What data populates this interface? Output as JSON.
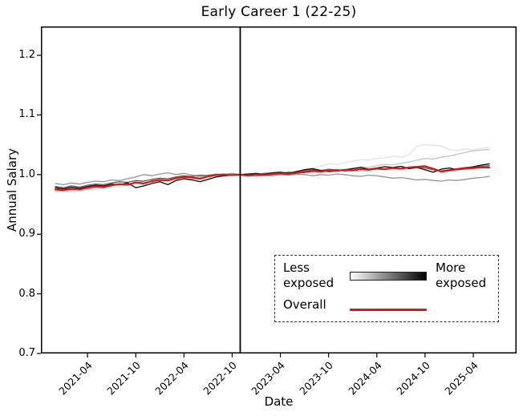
{
  "title": "Early Career 1 (22-25)",
  "axes": {
    "x_label": "Date",
    "y_label": "Annual Salary"
  },
  "legend": {
    "less_label": "Less exposed",
    "more_label": "More exposed",
    "overall_label": "Overall"
  },
  "colors": {
    "overall_red": "#e01515",
    "axis_black": "#000000",
    "gradient_start": "#ffffff",
    "gradient_end": "#000000"
  },
  "chart_data": {
    "type": "line",
    "title": "Early Career 1 (22-25)",
    "xlabel": "Date",
    "ylabel": "Annual Salary",
    "ylim": [
      0.7,
      1.25
    ],
    "y_ticks": [
      0.7,
      0.8,
      0.9,
      1.0,
      1.1,
      1.2
    ],
    "x_ticks": [
      "2021-04",
      "2021-10",
      "2022-04",
      "2022-10",
      "2023-04",
      "2023-10",
      "2024-04",
      "2024-10",
      "2025-04"
    ],
    "x_tick_rotation_deg": 45,
    "grid": false,
    "legend_position": "lower-right-inside",
    "event_line_x": "2022-11",
    "x": [
      "2020-12",
      "2021-01",
      "2021-02",
      "2021-03",
      "2021-04",
      "2021-05",
      "2021-06",
      "2021-07",
      "2021-08",
      "2021-09",
      "2021-10",
      "2021-11",
      "2021-12",
      "2022-01",
      "2022-02",
      "2022-03",
      "2022-04",
      "2022-05",
      "2022-06",
      "2022-07",
      "2022-08",
      "2022-09",
      "2022-10",
      "2022-11",
      "2022-12",
      "2023-01",
      "2023-02",
      "2023-03",
      "2023-04",
      "2023-05",
      "2023-06",
      "2023-07",
      "2023-08",
      "2023-09",
      "2023-10",
      "2023-11",
      "2023-12",
      "2024-01",
      "2024-02",
      "2024-03",
      "2024-04",
      "2024-05",
      "2024-06",
      "2024-07",
      "2024-08",
      "2024-09",
      "2024-10",
      "2024-11",
      "2024-12",
      "2025-01",
      "2025-02",
      "2025-03",
      "2025-04",
      "2025-05",
      "2025-06"
    ],
    "series": [
      {
        "name": "least-exposed-quintile-1",
        "color": "#e2e2e2",
        "width": 1.3,
        "values": [
          0.97,
          0.972,
          0.97,
          0.973,
          0.975,
          0.974,
          0.978,
          0.98,
          0.979,
          0.983,
          0.986,
          0.984,
          0.988,
          0.99,
          0.989,
          0.993,
          0.996,
          0.994,
          0.992,
          0.996,
          0.998,
          1.0,
          0.999,
          1.0,
          1.0,
          1.002,
          1.001,
          1.003,
          1.004,
          1.003,
          1.006,
          1.009,
          1.011,
          1.014,
          1.018,
          1.017,
          1.02,
          1.022,
          1.025,
          1.024,
          1.027,
          1.028,
          1.031,
          1.029,
          1.033,
          1.048,
          1.05,
          1.049,
          1.048,
          1.042,
          1.04,
          1.043,
          1.041,
          1.044,
          1.046
        ]
      },
      {
        "name": "quintile-2",
        "color": "#c3c3c3",
        "width": 1.3,
        "values": [
          0.973,
          0.971,
          0.974,
          0.976,
          0.975,
          0.978,
          0.977,
          0.981,
          0.983,
          0.982,
          0.986,
          0.988,
          0.987,
          0.991,
          0.99,
          0.993,
          0.995,
          0.997,
          0.995,
          0.998,
          1.0,
          0.999,
          1.001,
          1.0,
          0.999,
          1.001,
          1.0,
          1.002,
          1.001,
          1.003,
          1.002,
          1.005,
          1.004,
          1.007,
          1.006,
          1.009,
          1.008,
          1.011,
          1.013,
          1.012,
          1.015,
          1.017,
          1.016,
          1.019,
          1.021,
          1.024,
          1.027,
          1.026,
          1.029,
          1.031,
          1.034,
          1.037,
          1.04,
          1.041,
          1.042
        ]
      },
      {
        "name": "quintile-3",
        "color": "#949494",
        "width": 1.3,
        "values": [
          0.985,
          0.983,
          0.986,
          0.984,
          0.987,
          0.989,
          0.988,
          0.991,
          0.99,
          0.993,
          0.996,
          1.0,
          0.998,
          1.001,
          1.003,
          1.0,
          1.002,
          0.999,
          0.997,
          0.999,
          1.001,
          1.0,
          1.002,
          1.0,
          0.999,
          0.997,
          0.999,
          0.998,
          1.0,
          0.999,
          1.001,
          1.0,
          0.998,
          1.0,
          0.999,
          1.001,
          1.0,
          0.998,
          0.997,
          0.999,
          0.998,
          0.996,
          0.994,
          0.995,
          0.993,
          0.991,
          0.992,
          0.99,
          0.989,
          0.991,
          0.99,
          0.992,
          0.994,
          0.995,
          0.997
        ]
      },
      {
        "name": "quintile-4",
        "color": "#5f5f5f",
        "width": 1.3,
        "values": [
          0.98,
          0.978,
          0.981,
          0.979,
          0.982,
          0.984,
          0.983,
          0.986,
          0.988,
          0.987,
          0.99,
          0.989,
          0.992,
          0.994,
          0.993,
          0.996,
          0.998,
          0.997,
          0.999,
          0.998,
          1.0,
          1.001,
          0.999,
          1.0,
          1.001,
          1.0,
          1.002,
          1.003,
          1.002,
          1.004,
          1.003,
          1.006,
          1.008,
          1.007,
          1.009,
          1.008,
          1.006,
          1.007,
          1.009,
          1.008,
          1.01,
          1.009,
          1.011,
          1.01,
          1.012,
          1.013,
          1.011,
          1.008,
          1.006,
          1.008,
          1.01,
          1.012,
          1.013,
          1.014,
          1.015
        ]
      },
      {
        "name": "most-exposed-quintile-5",
        "color": "#161616",
        "width": 1.4,
        "values": [
          0.978,
          0.976,
          0.979,
          0.977,
          0.98,
          0.982,
          0.981,
          0.984,
          0.983,
          0.986,
          0.978,
          0.981,
          0.985,
          0.988,
          0.983,
          0.99,
          0.993,
          0.991,
          0.988,
          0.992,
          0.996,
          0.998,
          0.999,
          1.0,
          1.001,
          1.002,
          1.0,
          1.003,
          1.004,
          1.002,
          1.005,
          1.008,
          1.01,
          1.007,
          1.005,
          1.006,
          1.008,
          1.01,
          1.012,
          1.009,
          1.011,
          1.013,
          1.012,
          1.014,
          1.01,
          1.012,
          1.008,
          1.004,
          1.009,
          1.011,
          1.008,
          1.01,
          1.013,
          1.016,
          1.018
        ]
      },
      {
        "name": "overall",
        "color": "#e01515",
        "width": 2.2,
        "values": [
          0.975,
          0.974,
          0.976,
          0.975,
          0.978,
          0.98,
          0.979,
          0.982,
          0.984,
          0.983,
          0.987,
          0.985,
          0.989,
          0.991,
          0.99,
          0.994,
          0.996,
          0.995,
          0.993,
          0.997,
          0.999,
          1.0,
          0.999,
          1.0,
          0.998,
          1.0,
          0.999,
          1.001,
          1.002,
          1.001,
          1.003,
          1.004,
          1.006,
          1.005,
          1.007,
          1.006,
          1.008,
          1.007,
          1.009,
          1.008,
          1.01,
          1.009,
          1.011,
          1.01,
          1.012,
          1.013,
          1.014,
          1.01,
          1.005,
          1.007,
          1.009,
          1.01,
          1.011,
          1.012,
          1.012
        ]
      }
    ]
  }
}
